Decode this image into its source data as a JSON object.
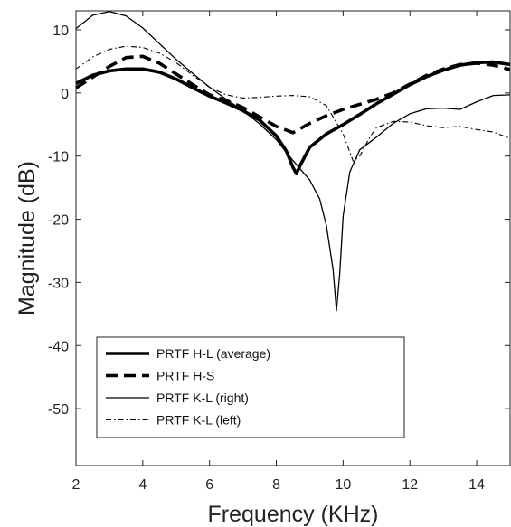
{
  "chart_data": {
    "type": "line",
    "title": "",
    "xlabel": "Frequency (KHz)",
    "ylabel": "Magnitude (dB)",
    "xlim": [
      2,
      15
    ],
    "ylim": [
      -59,
      13
    ],
    "xticks": [
      2,
      4,
      6,
      8,
      10,
      12,
      14
    ],
    "yticks": [
      10,
      0,
      -10,
      -20,
      -30,
      -40,
      -50
    ],
    "xtick_labels": [
      "2",
      "4",
      "6",
      "8",
      "10",
      "12",
      "14"
    ],
    "ytick_labels": [
      "10",
      "0",
      "-10",
      "-20",
      "-30",
      "-40",
      "-50"
    ],
    "grid": false,
    "legend_position": "lower-left",
    "series": [
      {
        "name": "PRTF H-L (average)",
        "style": "thick-solid",
        "color": "#000000",
        "x": [
          2,
          2.5,
          3,
          3.5,
          4,
          4.5,
          5,
          5.5,
          6,
          6.5,
          7,
          7.5,
          8,
          8.3,
          8.5,
          8.6,
          8.7,
          9,
          9.5,
          10,
          10.5,
          11,
          11.5,
          12,
          12.5,
          13,
          13.5,
          14,
          14.5,
          15
        ],
        "y": [
          1.5,
          2.8,
          3.5,
          3.8,
          3.8,
          3.3,
          2.2,
          0.8,
          -0.5,
          -1.6,
          -2.8,
          -4.3,
          -6.8,
          -9.2,
          -11.8,
          -12.8,
          -11.6,
          -8.6,
          -6.5,
          -5.0,
          -3.4,
          -1.7,
          -0.2,
          1.3,
          2.6,
          3.6,
          4.4,
          4.8,
          4.9,
          4.5
        ]
      },
      {
        "name": "PRTF H-S",
        "style": "thick-dashed",
        "color": "#000000",
        "x": [
          2,
          2.5,
          3,
          3.5,
          4,
          4.5,
          5,
          5.5,
          6,
          6.5,
          7,
          7.5,
          8,
          8.5,
          9,
          9.5,
          10,
          10.5,
          11,
          11.5,
          12,
          12.5,
          13,
          13.5,
          14,
          14.5,
          15
        ],
        "y": [
          0.8,
          2.5,
          4.2,
          5.6,
          5.8,
          4.7,
          3.0,
          1.3,
          -0.3,
          -1.2,
          -2.3,
          -3.8,
          -5.3,
          -6.3,
          -4.8,
          -3.6,
          -2.6,
          -1.8,
          -1.0,
          0.0,
          1.4,
          2.8,
          3.8,
          4.5,
          4.7,
          4.4,
          3.7
        ]
      },
      {
        "name": "PRTF K-L (right)",
        "style": "thin-solid",
        "color": "#000000",
        "x": [
          2,
          2.5,
          3,
          3.5,
          4,
          4.5,
          5,
          5.5,
          6,
          6.5,
          7,
          7.5,
          8,
          8.5,
          9,
          9.3,
          9.5,
          9.7,
          9.8,
          9.9,
          10,
          10.2,
          10.5,
          11,
          11.5,
          12,
          12.5,
          13,
          13.5,
          14,
          14.5,
          15
        ],
        "y": [
          10.2,
          12.3,
          12.9,
          12.2,
          10.3,
          7.8,
          5.3,
          3.1,
          0.9,
          -1.0,
          -2.8,
          -4.9,
          -7.4,
          -10.7,
          -13.8,
          -16.8,
          -21.0,
          -28.0,
          -34.5,
          -28.5,
          -19.5,
          -12.5,
          -9.0,
          -7.0,
          -4.8,
          -3.3,
          -2.5,
          -2.4,
          -2.6,
          -1.4,
          -0.4,
          -0.3
        ]
      },
      {
        "name": "PRTF K-L (left)",
        "style": "dash-dot",
        "color": "#000000",
        "x": [
          2,
          2.5,
          3,
          3.5,
          4,
          4.5,
          5,
          5.5,
          6,
          6.5,
          7,
          7.5,
          8,
          8.5,
          9,
          9.5,
          10,
          10.3,
          10.5,
          10.8,
          11,
          11.5,
          12,
          12.5,
          13,
          13.5,
          14,
          14.5,
          15
        ],
        "y": [
          3.8,
          5.7,
          6.9,
          7.4,
          7.2,
          6.3,
          4.8,
          2.8,
          0.9,
          -0.3,
          -0.8,
          -0.7,
          -0.5,
          -0.4,
          -0.6,
          -2.0,
          -6.5,
          -10.8,
          -10.0,
          -7.0,
          -5.5,
          -4.5,
          -4.6,
          -5.2,
          -5.5,
          -5.3,
          -5.8,
          -6.2,
          -7.2
        ]
      }
    ]
  }
}
